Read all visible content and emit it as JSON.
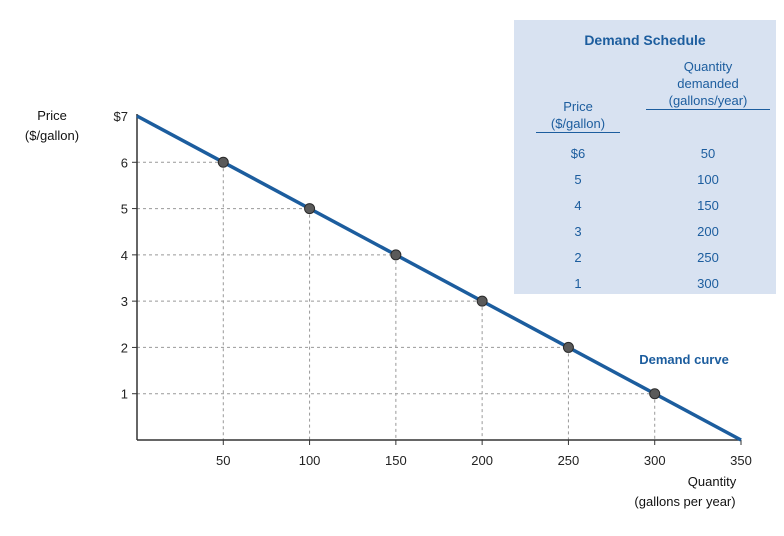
{
  "chart_data": {
    "type": "line",
    "title": "",
    "xlabel_lines": [
      "Quantity",
      "(gallons per year)"
    ],
    "ylabel_lines": [
      "Price",
      "($/gallon)"
    ],
    "xlim": [
      0,
      350
    ],
    "ylim": [
      0,
      7
    ],
    "x_ticks": [
      50,
      100,
      150,
      200,
      250,
      300,
      350
    ],
    "y_ticks": [
      1,
      2,
      3,
      4,
      5,
      6
    ],
    "y_tick_labels": [
      "1",
      "2",
      "3",
      "4",
      "5",
      "6"
    ],
    "y_top_label": "$7",
    "grid": "dashed guides to points",
    "curve": {
      "name": "Demand curve",
      "color": "#1c5d9e",
      "start": [
        0,
        7
      ],
      "end": [
        350,
        0
      ]
    },
    "points": [
      {
        "x": 50,
        "y": 6
      },
      {
        "x": 100,
        "y": 5
      },
      {
        "x": 150,
        "y": 4
      },
      {
        "x": 200,
        "y": 3
      },
      {
        "x": 250,
        "y": 2
      },
      {
        "x": 300,
        "y": 1
      }
    ]
  },
  "table": {
    "title": "Demand Schedule",
    "price_header": [
      "Price",
      "($/gallon)"
    ],
    "qty_header": [
      "Quantity",
      "demanded",
      "(gallons/year)"
    ],
    "rows": [
      {
        "price": "$6",
        "qty": "50"
      },
      {
        "price": "5",
        "qty": "100"
      },
      {
        "price": "4",
        "qty": "150"
      },
      {
        "price": "3",
        "qty": "200"
      },
      {
        "price": "2",
        "qty": "250"
      },
      {
        "price": "1",
        "qty": "300"
      }
    ],
    "background": "#d8e2f1",
    "text_color": "#1c5d9e"
  }
}
